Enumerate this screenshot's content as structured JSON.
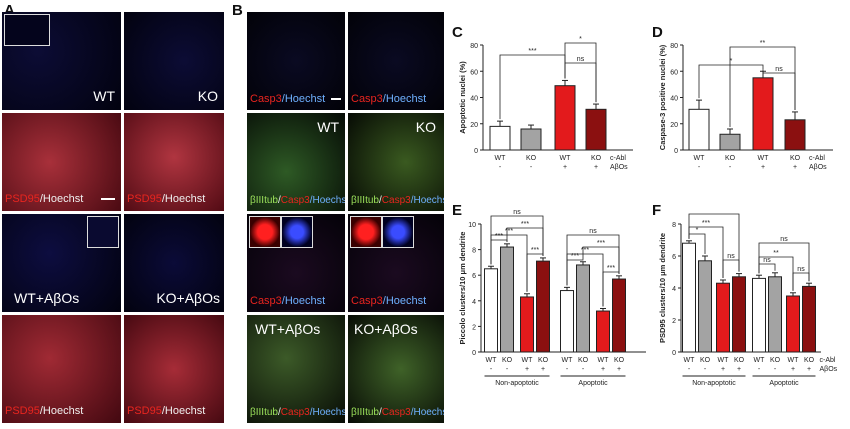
{
  "panels": {
    "A": "A",
    "B": "B",
    "C": "C",
    "D": "D",
    "E": "E",
    "F": "F"
  },
  "panelA": {
    "wt": "WT",
    "ko": "KO",
    "wt_abos": "WT+AβOs",
    "ko_abos": "KO+AβOs",
    "psd95": "PSD95",
    "hoechst": "/Hoechst"
  },
  "panelB": {
    "casp3": "Casp3",
    "hoechst": "/Hoechst",
    "wt": "WT",
    "ko": "KO",
    "wt_abos": "WT+AβOs",
    "ko_abos": "KO+AβOs",
    "btub": "βIIItub",
    "slash": "/",
    "casp3b": "Casp3"
  },
  "colors": {
    "white": "#ffffff",
    "gray": "#a3a3a3",
    "red": "#e31a1c",
    "darkred": "#8b1010"
  },
  "chart_data": [
    {
      "panel": "C",
      "type": "bar",
      "ylabel": "Apoptotic nuclei (%)",
      "ylim": [
        0,
        80
      ],
      "yticks": [
        "0",
        "20",
        "40",
        "60",
        "80"
      ],
      "categories": [
        "WT",
        "KO",
        "WT",
        "KO"
      ],
      "row2": [
        "-",
        "-",
        "+",
        "+"
      ],
      "factor_labels": [
        "c-Abl",
        "AβOs"
      ],
      "values": [
        18,
        16,
        49,
        31
      ],
      "errors": [
        4,
        3,
        4,
        4
      ],
      "colors": [
        "#ffffff",
        "#a3a3a3",
        "#e31a1c",
        "#8b1010"
      ],
      "sig": [
        "***",
        "*",
        "ns"
      ]
    },
    {
      "panel": "D",
      "type": "bar",
      "ylabel": "Caspase-3 positive nuclei (%)",
      "ylim": [
        0,
        80
      ],
      "yticks": [
        "0",
        "20",
        "40",
        "60",
        "80"
      ],
      "categories": [
        "WT",
        "KO",
        "WT",
        "KO"
      ],
      "row2": [
        "-",
        "-",
        "+",
        "+"
      ],
      "factor_labels": [
        "c-Abl",
        "AβOs"
      ],
      "values": [
        31,
        12,
        55,
        23
      ],
      "errors": [
        7,
        4,
        5,
        6
      ],
      "colors": [
        "#ffffff",
        "#a3a3a3",
        "#e31a1c",
        "#8b1010"
      ],
      "sig": [
        "*",
        "**",
        "ns"
      ]
    },
    {
      "panel": "E",
      "type": "bar",
      "ylabel": "Piccolo clusters/10 μm dendrite",
      "ylim": [
        0,
        10
      ],
      "yticks": [
        "0",
        "2",
        "4",
        "6",
        "8",
        "10"
      ],
      "categories": [
        "WT",
        "KO",
        "WT",
        "KO",
        "WT",
        "KO",
        "WT",
        "KO"
      ],
      "row2": [
        "-",
        "-",
        "+",
        "+",
        "-",
        "-",
        "+",
        "+"
      ],
      "groups": [
        "Non-apoptotic",
        "Apoptotic"
      ],
      "values": [
        6.5,
        8.2,
        4.3,
        7.1,
        4.8,
        6.8,
        3.2,
        5.7
      ],
      "errors": [
        0.2,
        0.25,
        0.25,
        0.25,
        0.25,
        0.25,
        0.2,
        0.25
      ],
      "colors": [
        "#ffffff",
        "#a3a3a3",
        "#e31a1c",
        "#8b1010",
        "#ffffff",
        "#a3a3a3",
        "#e31a1c",
        "#8b1010"
      ],
      "sig": [
        "***",
        "***",
        "***",
        "***",
        "ns",
        "***",
        "***",
        "***",
        "***",
        "ns"
      ]
    },
    {
      "panel": "F",
      "type": "bar",
      "ylabel": "PSD95 clusters/10 μm dendrite",
      "ylim": [
        0,
        8
      ],
      "yticks": [
        "0",
        "2",
        "4",
        "6",
        "8"
      ],
      "categories": [
        "WT",
        "KO",
        "WT",
        "KO",
        "WT",
        "KO",
        "WT",
        "KO"
      ],
      "row2": [
        "-",
        "-",
        "+",
        "+",
        "-",
        "-",
        "+",
        "+"
      ],
      "factor_labels": [
        "c-Abl",
        "AβOs"
      ],
      "groups": [
        "Non-apoptotic",
        "Apoptotic"
      ],
      "values": [
        6.8,
        5.7,
        4.3,
        4.7,
        4.6,
        4.7,
        3.5,
        4.1
      ],
      "errors": [
        0.15,
        0.3,
        0.2,
        0.2,
        0.2,
        0.25,
        0.2,
        0.2
      ],
      "colors": [
        "#ffffff",
        "#a3a3a3",
        "#e31a1c",
        "#8b1010",
        "#ffffff",
        "#a3a3a3",
        "#e31a1c",
        "#8b1010"
      ],
      "sig": [
        "*",
        "***",
        "*",
        "ns",
        "ns",
        "**",
        "ns",
        "ns"
      ]
    }
  ]
}
